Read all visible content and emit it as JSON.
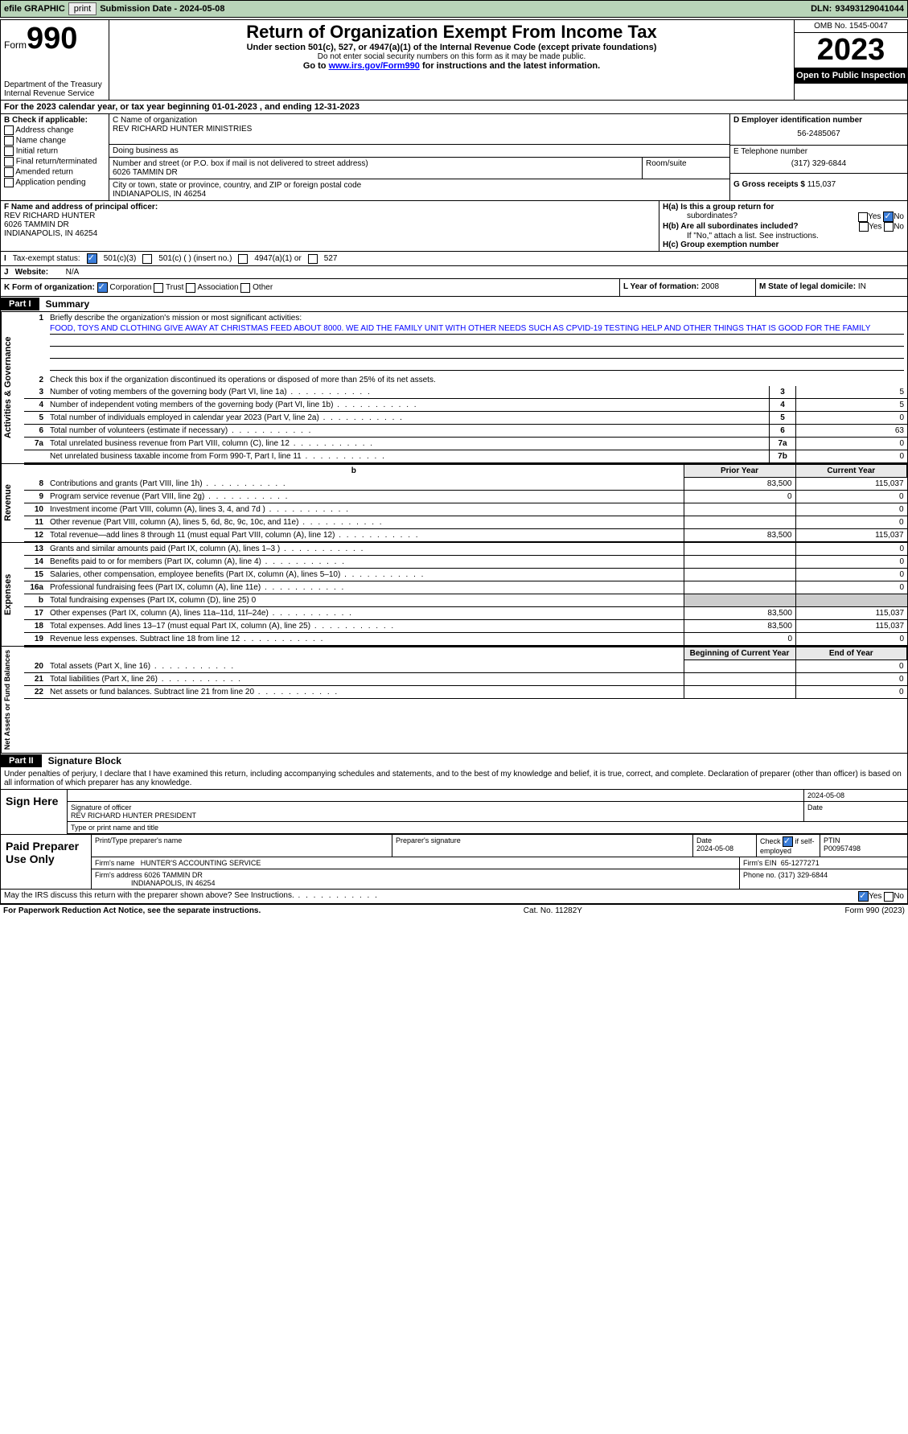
{
  "hdr": {
    "efile": "efile GRAPHIC",
    "print": "print",
    "subdate_lbl": "Submission Date - 2024-05-08",
    "dln_lbl": "DLN:",
    "dln": "93493129041044"
  },
  "formhead": {
    "form": "Form",
    "num": "990",
    "dept": "Department of the Treasury",
    "irs": "Internal Revenue Service",
    "title": "Return of Organization Exempt From Income Tax",
    "sub": "Under section 501(c), 527, or 4947(a)(1) of the Internal Revenue Code (except private foundations)",
    "note1": "Do not enter social security numbers on this form as it may be made public.",
    "note2": "Go to ",
    "link": "www.irs.gov/Form990",
    "note3": " for instructions and the latest information.",
    "omb": "OMB No. 1545-0047",
    "year": "2023",
    "pub": "Open to Public Inspection"
  },
  "A": {
    "text": "For the 2023 calendar year, or tax year beginning 01-01-2023    , and ending 12-31-2023"
  },
  "B": {
    "lbl": "B Check if applicable:",
    "opts": [
      "Address change",
      "Name change",
      "Initial return",
      "Final return/terminated",
      "Amended return",
      "Application pending"
    ]
  },
  "C": {
    "namelbl": "C Name of organization",
    "name": "REV RICHARD HUNTER MINISTRIES",
    "dba": "Doing business as",
    "addrlbl": "Number and street (or P.O. box if mail is not delivered to street address)",
    "addr": "6026 TAMMIN DR",
    "room": "Room/suite",
    "citylbl": "City or town, state or province, country, and ZIP or foreign postal code",
    "city": "INDIANAPOLIS, IN  46254"
  },
  "D": {
    "lbl": "D Employer identification number",
    "val": "56-2485067"
  },
  "E": {
    "lbl": "E Telephone number",
    "val": "(317) 329-6844"
  },
  "G": {
    "lbl": "G Gross receipts $",
    "val": "115,037"
  },
  "F": {
    "lbl": "F  Name and address of principal officer:",
    "l1": "REV RICHARD HUNTER",
    "l2": "6026 TAMMIN DR",
    "l3": "INDIANAPOLIS, IN  46254"
  },
  "H": {
    "a": "H(a)  Is this a group return for",
    "a2": "subordinates?",
    "b": "H(b)  Are all subordinates included?",
    "bnote": "If \"No,\" attach a list. See instructions.",
    "c": "H(c)  Group exemption number",
    "yes": "Yes",
    "no": "No"
  },
  "I": {
    "lbl": "Tax-exempt status:",
    "o1": "501(c)(3)",
    "o2": "501(c) (  ) (insert no.)",
    "o3": "4947(a)(1) or",
    "o4": "527"
  },
  "J": {
    "lbl": "Website:",
    "val": "N/A"
  },
  "K": {
    "lbl": "K Form of organization:",
    "o1": "Corporation",
    "o2": "Trust",
    "o3": "Association",
    "o4": "Other"
  },
  "L": {
    "lbl": "L Year of formation:",
    "val": "2008"
  },
  "M": {
    "lbl": "M State of legal domicile:",
    "val": "IN"
  },
  "part1": {
    "lbl": "Part I",
    "name": "Summary"
  },
  "l1": {
    "lbl": "Briefly describe the organization's mission or most significant activities:",
    "txt": "FOOD, TOYS AND CLOTHING GIVE AWAY AT CHRISTMAS FEED ABOUT 8000. WE AID THE FAMILY UNIT WITH OTHER NEEDS SUCH AS CPVID-19 TESTING HELP AND OTHER THINGS THAT IS GOOD FOR THE FAMILY"
  },
  "l2": "Check this box       if the organization discontinued its operations or disposed of more than 25% of its net assets.",
  "gov": {
    "tab": "Activities & Governance",
    "rows": [
      {
        "n": "3",
        "t": "Number of voting members of the governing body (Part VI, line 1a)",
        "r": "3",
        "v": "5"
      },
      {
        "n": "4",
        "t": "Number of independent voting members of the governing body (Part VI, line 1b)",
        "r": "4",
        "v": "5"
      },
      {
        "n": "5",
        "t": "Total number of individuals employed in calendar year 2023 (Part V, line 2a)",
        "r": "5",
        "v": "0"
      },
      {
        "n": "6",
        "t": "Total number of volunteers (estimate if necessary)",
        "r": "6",
        "v": "63"
      },
      {
        "n": "7a",
        "t": "Total unrelated business revenue from Part VIII, column (C), line 12",
        "r": "7a",
        "v": "0"
      },
      {
        "n": "",
        "t": "Net unrelated business taxable income from Form 990-T, Part I, line 11",
        "r": "7b",
        "v": "0"
      }
    ]
  },
  "rev": {
    "tab": "Revenue",
    "hdr": {
      "py": "Prior Year",
      "cy": "Current Year"
    },
    "rows": [
      {
        "n": "8",
        "t": "Contributions and grants (Part VIII, line 1h)",
        "py": "83,500",
        "cy": "115,037"
      },
      {
        "n": "9",
        "t": "Program service revenue (Part VIII, line 2g)",
        "py": "0",
        "cy": "0"
      },
      {
        "n": "10",
        "t": "Investment income (Part VIII, column (A), lines 3, 4, and 7d )",
        "py": "",
        "cy": "0"
      },
      {
        "n": "11",
        "t": "Other revenue (Part VIII, column (A), lines 5, 6d, 8c, 9c, 10c, and 11e)",
        "py": "",
        "cy": "0"
      },
      {
        "n": "12",
        "t": "Total revenue—add lines 8 through 11 (must equal Part VIII, column (A), line 12)",
        "py": "83,500",
        "cy": "115,037"
      }
    ]
  },
  "exp": {
    "tab": "Expenses",
    "rows": [
      {
        "n": "13",
        "t": "Grants and similar amounts paid (Part IX, column (A), lines 1–3 )",
        "py": "",
        "cy": "0"
      },
      {
        "n": "14",
        "t": "Benefits paid to or for members (Part IX, column (A), line 4)",
        "py": "",
        "cy": "0"
      },
      {
        "n": "15",
        "t": "Salaries, other compensation, employee benefits (Part IX, column (A), lines 5–10)",
        "py": "",
        "cy": "0"
      },
      {
        "n": "16a",
        "t": "Professional fundraising fees (Part IX, column (A), line 11e)",
        "py": "",
        "cy": "0"
      },
      {
        "n": "b",
        "t": "Total fundraising expenses (Part IX, column (D), line 25) 0",
        "grey": true
      },
      {
        "n": "17",
        "t": "Other expenses (Part IX, column (A), lines 11a–11d, 11f–24e)",
        "py": "83,500",
        "cy": "115,037"
      },
      {
        "n": "18",
        "t": "Total expenses. Add lines 13–17 (must equal Part IX, column (A), line 25)",
        "py": "83,500",
        "cy": "115,037"
      },
      {
        "n": "19",
        "t": "Revenue less expenses. Subtract line 18 from line 12",
        "py": "0",
        "cy": "0"
      }
    ]
  },
  "na": {
    "tab": "Net Assets or Fund Balances",
    "hdr": {
      "py": "Beginning of Current Year",
      "cy": "End of Year"
    },
    "rows": [
      {
        "n": "20",
        "t": "Total assets (Part X, line 16)",
        "py": "",
        "cy": "0"
      },
      {
        "n": "21",
        "t": "Total liabilities (Part X, line 26)",
        "py": "",
        "cy": "0"
      },
      {
        "n": "22",
        "t": "Net assets or fund balances. Subtract line 21 from line 20",
        "py": "",
        "cy": "0"
      }
    ]
  },
  "part2": {
    "lbl": "Part II",
    "name": "Signature Block",
    "decl": "Under penalties of perjury, I declare that I have examined this return, including accompanying schedules and statements, and to the best of my knowledge and belief, it is true, correct, and complete. Declaration of preparer (other than officer) is based on all information of which preparer has any knowledge."
  },
  "sign": {
    "here": "Sign Here",
    "sig": "Signature of officer",
    "name": "REV RICHARD HUNTER  PRESIDENT",
    "type": "Type or print name and title",
    "date": "2024-05-08",
    "dl": "Date"
  },
  "paid": {
    "lbl": "Paid Preparer Use Only",
    "p1": "Print/Type preparer's name",
    "p2": "Preparer's signature",
    "dl": "Date",
    "dv": "2024-05-08",
    "chk": "Check",
    "se": "if self-employed",
    "ptin": "PTIN",
    "ptinv": "P00957498",
    "fn": "Firm's name",
    "fnv": "HUNTER'S ACCOUNTING SERVICE",
    "fe": "Firm's EIN",
    "fev": "65-1277271",
    "fa": "Firm's address",
    "fav1": "6026 TAMMIN DR",
    "fav2": "INDIANAPOLIS, IN  46254",
    "ph": "Phone no.",
    "phv": "(317) 329-6844"
  },
  "discuss": "May the IRS discuss this return with the preparer shown above? See Instructions.",
  "foot": {
    "l": "For Paperwork Reduction Act Notice, see the separate instructions.",
    "c": "Cat. No. 11282Y",
    "r": "Form 990 (2023)"
  }
}
